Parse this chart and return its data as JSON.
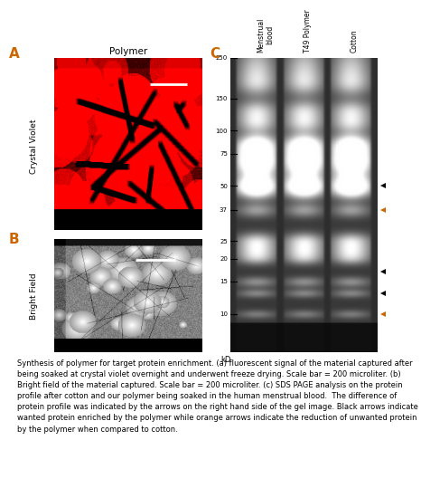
{
  "title_A": "A",
  "title_B": "B",
  "title_C": "C",
  "label_polymer": "Polymer",
  "label_crystal_violet": "Crystal Violet",
  "label_bright_field": "Bright Field",
  "kd_label": "kD",
  "kd_marks": [
    250,
    150,
    100,
    75,
    50,
    37,
    25,
    20,
    15,
    10
  ],
  "col_labels": [
    "Menstrual\nblood",
    "T49 Polymer",
    "Cotton"
  ],
  "black_arrow_kd": [
    50,
    17,
    13
  ],
  "orange_arrow_kd": [
    37,
    10
  ],
  "caption": "Synthesis of polymer for target protein enrichment. (a) fluorescent signal of the material captured after being soaked at crystal violet overnight and underwent freeze drying. Scale bar = 200 microliter. (b) Bright field of the material captured. Scale bar = 200 microliter. (c) SDS PAGE analysis on the protein profile after cotton and our polymer being soaked in the human menstrual blood.  The difference of protein profile was indicated by the arrows on the right hand side of the gel image. Black arrows indicate wanted protein enriched by the polymer while orange arrows indicate the reduction of unwanted protein by the polymer when compared to cotton.",
  "bg_color": "#ffffff",
  "orange_color": "#cc6600",
  "title_A_color": "#cc6600",
  "title_B_color": "#cc6600",
  "title_C_color": "#cc6600"
}
